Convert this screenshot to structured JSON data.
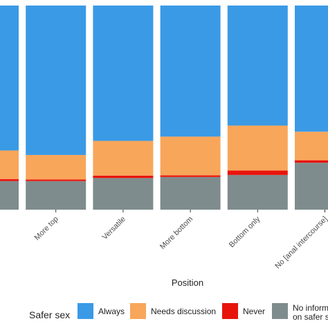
{
  "chart_data": {
    "type": "bar",
    "stacked": true,
    "xlabel": "Position",
    "ylim": [
      0,
      1
    ],
    "grid": false,
    "legend_position": "bottom",
    "categories": [
      "",
      "More top",
      "Versatile",
      "More bottom",
      "Bottom only",
      "No [anal intercourse]"
    ],
    "series": [
      {
        "name": "No information on safer sex",
        "color": "#7F8C8D",
        "values": [
          0.14,
          0.14,
          0.155,
          0.16,
          0.17,
          0.23
        ]
      },
      {
        "name": "Never",
        "color": "#E8140C",
        "values": [
          0.01,
          0.008,
          0.012,
          0.008,
          0.022,
          0.012
        ]
      },
      {
        "name": "Needs discussion",
        "color": "#F8A65A",
        "values": [
          0.14,
          0.12,
          0.17,
          0.19,
          0.22,
          0.14
        ]
      },
      {
        "name": "Always",
        "color": "#3A9AE6",
        "values": [
          0.71,
          0.732,
          0.663,
          0.642,
          0.588,
          0.618
        ]
      }
    ]
  },
  "legend": {
    "title": "Safer sex",
    "items": [
      {
        "label": "Always",
        "color": "#3A9AE6"
      },
      {
        "label": "Needs discussion",
        "color": "#F8A65A"
      },
      {
        "label": "Never",
        "color": "#E8140C"
      },
      {
        "label": "No information",
        "label2": "on safer sex",
        "color": "#7F8C8D"
      }
    ]
  }
}
